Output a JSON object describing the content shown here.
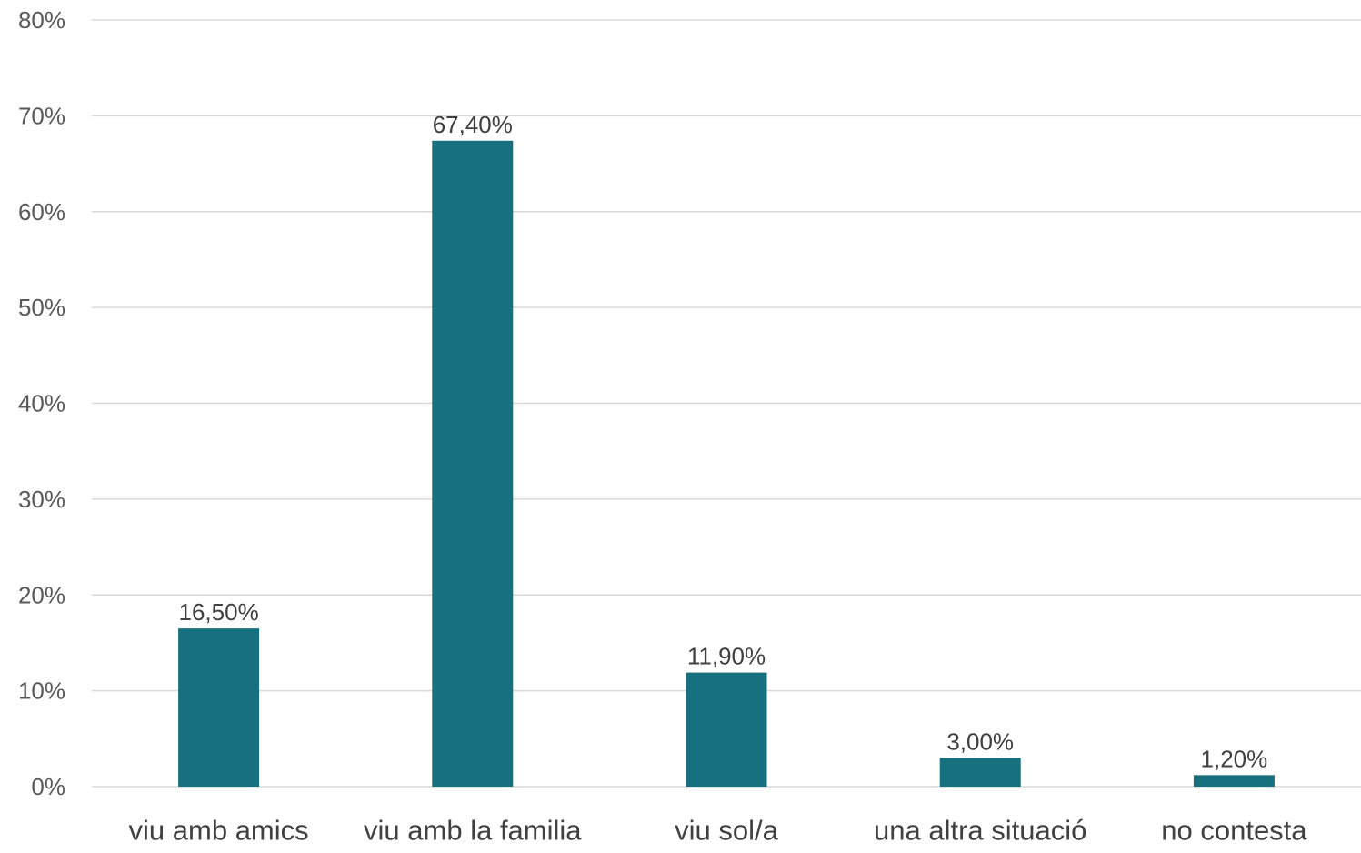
{
  "chart_data": {
    "type": "bar",
    "title": "",
    "xlabel": "",
    "ylabel": "",
    "categories": [
      "viu amb amics",
      "viu amb la familia",
      "viu sol/a",
      "una altra situació",
      "no contesta"
    ],
    "values": [
      16.5,
      67.4,
      11.9,
      3.0,
      1.2
    ],
    "data_labels": [
      "16,50%",
      "67,40%",
      "11,90%",
      "3,00%",
      "1,20%"
    ],
    "ylim": [
      0,
      80
    ],
    "yticks": [
      0,
      10,
      20,
      30,
      40,
      50,
      60,
      70,
      80
    ],
    "ytick_labels": [
      "0%",
      "10%",
      "20%",
      "30%",
      "40%",
      "50%",
      "60%",
      "70%",
      "80%"
    ],
    "grid": true,
    "legend": "none",
    "bar_color": "#17707d",
    "grid_color": "#d9d9d9"
  }
}
